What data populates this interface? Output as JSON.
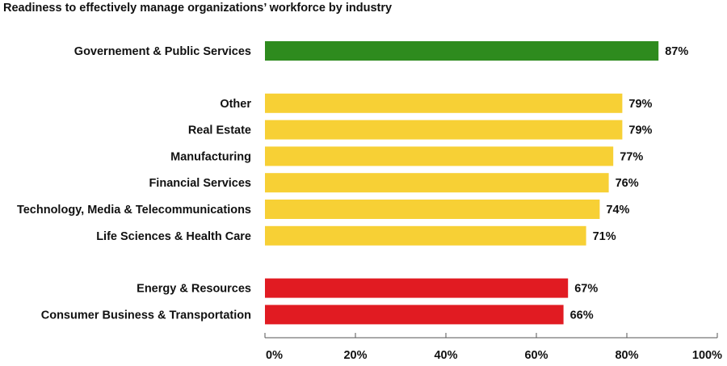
{
  "chart_data": {
    "type": "bar",
    "orientation": "horizontal",
    "title": "Readiness to effectively manage organizations’ workforce by industry",
    "xlabel": "",
    "ylabel": "",
    "xlim": [
      0,
      100
    ],
    "x_ticks": [
      "0%",
      "20%",
      "40%",
      "60%",
      "80%",
      "100%"
    ],
    "grid": false,
    "legend": "none",
    "groups": [
      {
        "color": "#2e8b1e",
        "bars": [
          {
            "category": "Governement & Public Services",
            "value": 87,
            "label": "87%"
          }
        ]
      },
      {
        "color": "#f7d035",
        "bars": [
          {
            "category": "Other",
            "value": 79,
            "label": "79%"
          },
          {
            "category": "Real Estate",
            "value": 79,
            "label": "79%"
          },
          {
            "category": "Manufacturing",
            "value": 77,
            "label": "77%"
          },
          {
            "category": "Financial Services",
            "value": 76,
            "label": "76%"
          },
          {
            "category": "Technology, Media & Telecommunications",
            "value": 74,
            "label": "74%"
          },
          {
            "category": "Life Sciences & Health Care",
            "value": 71,
            "label": "71%"
          }
        ]
      },
      {
        "color": "#e11b22",
        "bars": [
          {
            "category": "Energy & Resources",
            "value": 67,
            "label": "67%"
          },
          {
            "category": "Consumer Business & Transportation",
            "value": 66,
            "label": "66%"
          }
        ]
      }
    ],
    "axis_color": "#555555"
  }
}
